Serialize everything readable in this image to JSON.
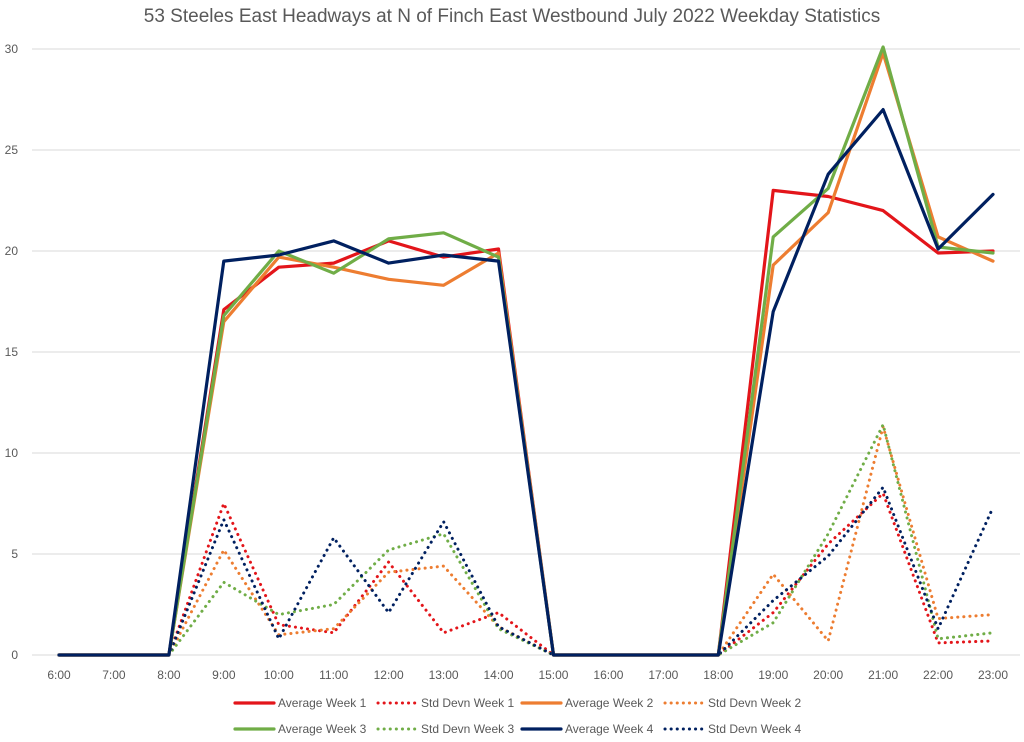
{
  "chart_data": {
    "type": "line",
    "title": "53 Steeles East Headways at N of Finch East Westbound July 2022 Weekday Statistics",
    "xlabel": "",
    "ylabel": "",
    "categories": [
      "6:00",
      "7:00",
      "8:00",
      "9:00",
      "10:00",
      "11:00",
      "12:00",
      "13:00",
      "14:00",
      "15:00",
      "16:00",
      "17:00",
      "18:00",
      "19:00",
      "20:00",
      "21:00",
      "22:00",
      "23:00"
    ],
    "ylim": [
      0,
      30
    ],
    "yticks": [
      0,
      5,
      10,
      15,
      20,
      25,
      30
    ],
    "grid": true,
    "legend_position": "bottom",
    "series": [
      {
        "name": "Average Week 1",
        "color": "#e3151a",
        "style": "solid",
        "values": [
          0,
          0,
          0,
          17.1,
          19.2,
          19.4,
          20.5,
          19.7,
          20.1,
          0,
          0,
          0,
          0,
          23.0,
          22.7,
          22.0,
          19.9,
          20.0
        ]
      },
      {
        "name": "Std Devn Week 1",
        "color": "#e3151a",
        "style": "dotted",
        "values": [
          0,
          0,
          0,
          7.5,
          1.5,
          1.1,
          4.6,
          1.1,
          2.1,
          0,
          0,
          0,
          0,
          2.1,
          5.5,
          8.0,
          0.6,
          0.7
        ]
      },
      {
        "name": "Average Week 2",
        "color": "#ed7d31",
        "style": "solid",
        "values": [
          0,
          0,
          0,
          16.5,
          19.7,
          19.2,
          18.6,
          18.3,
          19.9,
          0,
          0,
          0,
          0,
          19.3,
          21.9,
          29.8,
          20.7,
          19.5
        ]
      },
      {
        "name": "Std Devn Week 2",
        "color": "#ed7d31",
        "style": "dotted",
        "values": [
          0,
          0,
          0,
          5.2,
          1.0,
          1.3,
          4.1,
          4.4,
          1.4,
          0,
          0,
          0,
          0,
          4.0,
          0.7,
          11.3,
          1.8,
          2.0
        ]
      },
      {
        "name": "Average Week 3",
        "color": "#70ad47",
        "style": "solid",
        "values": [
          0,
          0,
          0,
          16.8,
          20.0,
          18.9,
          20.6,
          20.9,
          19.7,
          0,
          0,
          0,
          0,
          20.7,
          23.1,
          30.1,
          20.2,
          19.9
        ]
      },
      {
        "name": "Std Devn Week 3",
        "color": "#70ad47",
        "style": "dotted",
        "values": [
          0,
          0,
          0,
          3.6,
          2.0,
          2.5,
          5.2,
          6.0,
          1.3,
          0,
          0,
          0,
          0,
          1.6,
          6.0,
          11.4,
          0.8,
          1.1
        ]
      },
      {
        "name": "Average Week 4",
        "color": "#002060",
        "style": "solid",
        "values": [
          0,
          0,
          0,
          19.5,
          19.8,
          20.5,
          19.4,
          19.8,
          19.5,
          0,
          0,
          0,
          0,
          17.0,
          23.8,
          27.0,
          20.1,
          22.8
        ]
      },
      {
        "name": "Std Devn Week 4",
        "color": "#002060",
        "style": "dotted",
        "values": [
          0,
          0,
          0,
          6.7,
          0.8,
          5.8,
          2.1,
          6.6,
          1.4,
          0,
          0,
          0,
          0,
          2.7,
          4.9,
          8.3,
          1.3,
          7.3
        ]
      }
    ]
  }
}
